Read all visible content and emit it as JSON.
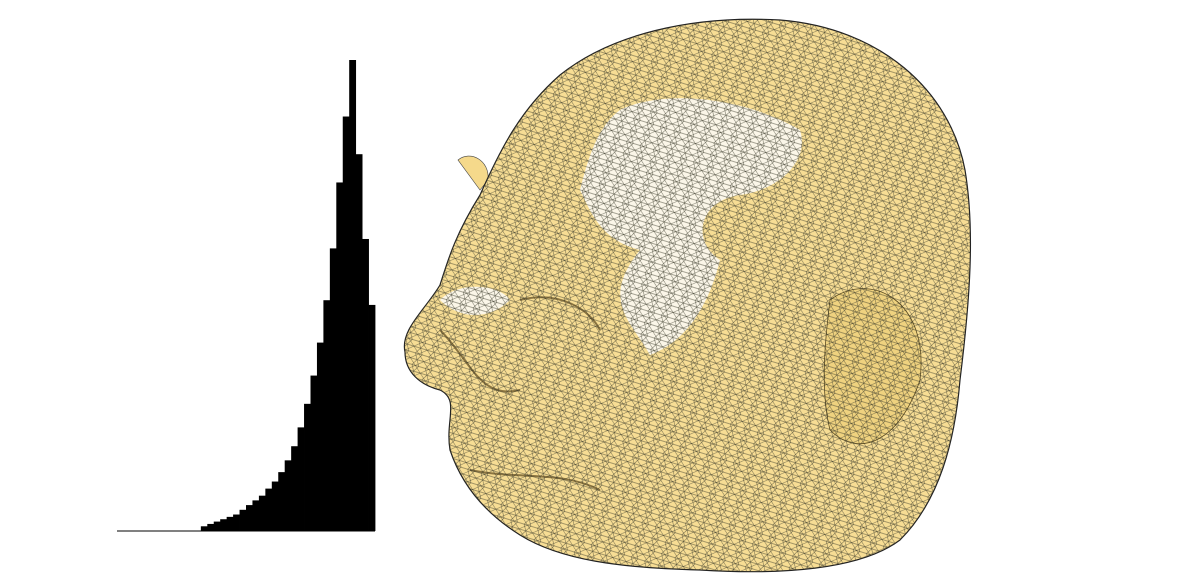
{
  "chart_data": {
    "type": "histogram",
    "bins": [
      0,
      0.025,
      0.05,
      0.075,
      0.1,
      0.125,
      0.15,
      0.175,
      0.2,
      0.225,
      0.25,
      0.275,
      0.3,
      0.325,
      0.35,
      0.375,
      0.4,
      0.425,
      0.45,
      0.475,
      0.5,
      0.525,
      0.55,
      0.575,
      0.6,
      0.625,
      0.65,
      0.675,
      0.7,
      0.725,
      0.75,
      0.775,
      0.8,
      0.825,
      0.85,
      0.875,
      0.9,
      0.925,
      0.95,
      0.975,
      1
    ],
    "counts": [
      0,
      0,
      0,
      0,
      0,
      0,
      0,
      0,
      0,
      0,
      0,
      0,
      0,
      1,
      1.5,
      2,
      2.5,
      3,
      3.5,
      4.5,
      5.5,
      6.5,
      7.5,
      9,
      10.5,
      12.5,
      15,
      18,
      22,
      27,
      33,
      40,
      49,
      60,
      74,
      88,
      100,
      80,
      62,
      48
    ],
    "color": "#000000",
    "xlim": [
      0,
      1
    ],
    "ylim": [
      0,
      100
    ]
  }
}
